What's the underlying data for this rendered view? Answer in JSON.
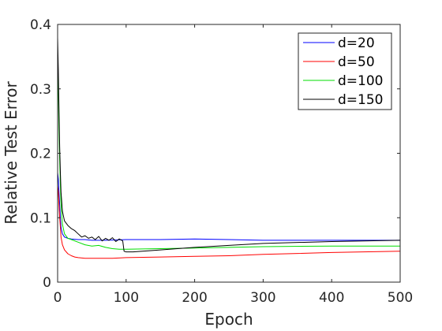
{
  "chart_data": {
    "type": "line",
    "xlabel": "Epoch",
    "ylabel": "Relative Test Error",
    "xlim": [
      0,
      500
    ],
    "ylim": [
      0,
      0.4
    ],
    "xticks": [
      0,
      100,
      200,
      300,
      400,
      500
    ],
    "yticks": [
      0,
      0.1,
      0.2,
      0.3,
      0.4
    ],
    "xtick_labels": [
      "0",
      "100",
      "200",
      "300",
      "400",
      "500"
    ],
    "ytick_labels": [
      "0",
      "0.1",
      "0.2",
      "0.3",
      "0.4"
    ],
    "grid": false,
    "legend_position": "top-right",
    "series": [
      {
        "name": "d=20",
        "color": "#0000ff",
        "x": [
          0,
          1,
          2,
          3,
          4,
          5,
          7,
          10,
          15,
          20,
          30,
          40,
          50,
          70,
          100,
          150,
          200,
          250,
          300,
          400,
          500
        ],
        "y": [
          0.17,
          0.16,
          0.14,
          0.12,
          0.1,
          0.085,
          0.075,
          0.07,
          0.068,
          0.067,
          0.066,
          0.066,
          0.065,
          0.065,
          0.066,
          0.066,
          0.067,
          0.066,
          0.065,
          0.065,
          0.065
        ]
      },
      {
        "name": "d=50",
        "color": "#ff0000",
        "x": [
          0,
          1,
          2,
          3,
          4,
          5,
          7,
          10,
          15,
          20,
          25,
          30,
          40,
          60,
          80,
          100,
          150,
          200,
          250,
          300,
          400,
          500
        ],
        "y": [
          0.15,
          0.14,
          0.12,
          0.1,
          0.085,
          0.07,
          0.058,
          0.05,
          0.044,
          0.041,
          0.039,
          0.038,
          0.037,
          0.037,
          0.037,
          0.038,
          0.039,
          0.04,
          0.041,
          0.043,
          0.046,
          0.048
        ]
      },
      {
        "name": "d=100",
        "color": "#00dd00",
        "x": [
          0,
          1,
          2,
          3,
          4,
          5,
          7,
          10,
          15,
          20,
          30,
          40,
          50,
          60,
          70,
          80,
          90,
          100,
          150,
          200,
          250,
          300,
          400,
          500
        ],
        "y": [
          0.34,
          0.3,
          0.24,
          0.19,
          0.15,
          0.12,
          0.09,
          0.075,
          0.068,
          0.066,
          0.062,
          0.058,
          0.056,
          0.057,
          0.054,
          0.052,
          0.051,
          0.051,
          0.052,
          0.053,
          0.054,
          0.055,
          0.056,
          0.056
        ]
      },
      {
        "name": "d=150",
        "color": "#000000",
        "x": [
          0,
          1,
          2,
          3,
          4,
          5,
          7,
          10,
          15,
          20,
          25,
          30,
          35,
          40,
          45,
          50,
          55,
          60,
          65,
          70,
          75,
          80,
          85,
          90,
          95,
          97,
          100,
          110,
          150,
          200,
          250,
          300,
          400,
          500
        ],
        "y": [
          0.38,
          0.33,
          0.27,
          0.21,
          0.17,
          0.14,
          0.11,
          0.095,
          0.088,
          0.083,
          0.08,
          0.075,
          0.07,
          0.072,
          0.068,
          0.07,
          0.066,
          0.071,
          0.064,
          0.068,
          0.065,
          0.069,
          0.063,
          0.067,
          0.064,
          0.048,
          0.047,
          0.047,
          0.05,
          0.054,
          0.057,
          0.06,
          0.063,
          0.065
        ]
      }
    ]
  }
}
